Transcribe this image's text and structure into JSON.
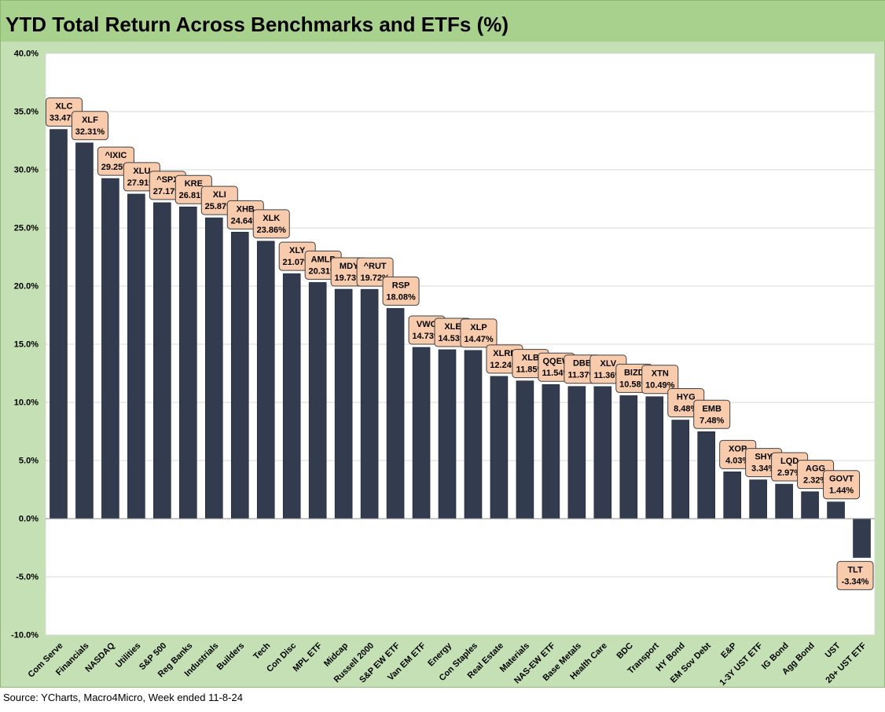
{
  "chart_data": {
    "type": "bar",
    "title": "YTD Total Return Across Benchmarks and ETFs (%)",
    "xlabel": "",
    "ylabel": "",
    "ylim": [
      -10,
      40
    ],
    "yticks": [
      -10,
      -5,
      0,
      5,
      10,
      15,
      20,
      25,
      30,
      35,
      40
    ],
    "ytick_labels": [
      "-10.0%",
      "-5.0%",
      "0.0%",
      "5.0%",
      "10.0%",
      "15.0%",
      "20.0%",
      "25.0%",
      "30.0%",
      "35.0%",
      "40.0%"
    ],
    "grid": true,
    "legend": "none",
    "bar_color": "#333c4e",
    "label_fill": "#f8cbad",
    "categories": [
      "Com Serve",
      "Financials",
      "NASDAQ",
      "Utilities",
      "S&P 500",
      "Reg Banks",
      "Industrials",
      "Builders",
      "Tech",
      "Con Disc",
      "MPL ETF",
      "Midcap",
      "Russell 2000",
      "S&P EW ETF",
      "Van EM ETF",
      "Energy",
      "Con Staples",
      "Real Estate",
      "Materials",
      "NAS-EW ETF",
      "Base Metals",
      "Health Care",
      "BDC",
      "Transport",
      "HY Bond",
      "EM Sov Debt",
      "E&P",
      "1-3Y UST ETF",
      "IG Bond",
      "Agg Bond",
      "UST",
      "20+ UST ETF"
    ],
    "tickers": [
      "XLC",
      "XLF",
      "^IXIC",
      "XLU",
      "^SPX",
      "KRE",
      "XLI",
      "XHB",
      "XLK",
      "XLY",
      "AMLP",
      "MDY",
      "^RUT",
      "RSP",
      "VWO",
      "XLE",
      "XLP",
      "XLRE",
      "XLB",
      "QQEW",
      "DBB",
      "XLV",
      "BIZD",
      "XTN",
      "HYG",
      "EMB",
      "XOP",
      "SHY",
      "LQD",
      "AGG",
      "GOVT",
      "TLT"
    ],
    "values": [
      33.47,
      32.31,
      29.25,
      27.91,
      27.17,
      26.81,
      25.87,
      24.64,
      23.86,
      21.07,
      20.31,
      19.73,
      19.72,
      18.08,
      14.73,
      14.53,
      14.47,
      12.24,
      11.85,
      11.54,
      11.37,
      11.36,
      10.58,
      10.49,
      8.48,
      7.48,
      4.03,
      3.34,
      2.97,
      2.32,
      1.44,
      -3.34
    ],
    "value_labels": [
      "33.47%",
      "32.31%",
      "29.25%",
      "27.91%",
      "27.17%",
      "26.81%",
      "25.87%",
      "24.64%",
      "23.86%",
      "21.07%",
      "20.31%",
      "19.73%",
      "19.72%",
      "18.08%",
      "14.73%",
      "14.53%",
      "14.47%",
      "12.24%",
      "11.85%",
      "11.54%",
      "11.37%",
      "11.36%",
      "10.58%",
      "10.49%",
      "8.48%",
      "7.48%",
      "4.03%",
      "3.34%",
      "2.97%",
      "2.32%",
      "1.44%",
      "-3.34%"
    ]
  },
  "source": "Source: YCharts, Macro4Micro, Week ended 11-8-24"
}
